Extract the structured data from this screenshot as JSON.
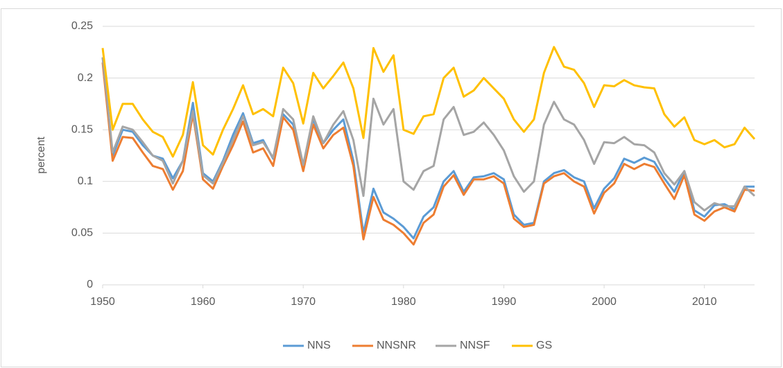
{
  "chart_data": {
    "type": "line",
    "y_label": "percent",
    "x": [
      1950,
      1951,
      1952,
      1953,
      1954,
      1955,
      1956,
      1957,
      1958,
      1959,
      1960,
      1961,
      1962,
      1963,
      1964,
      1965,
      1966,
      1967,
      1968,
      1969,
      1970,
      1971,
      1972,
      1973,
      1974,
      1975,
      1976,
      1977,
      1978,
      1979,
      1980,
      1981,
      1982,
      1983,
      1984,
      1985,
      1986,
      1987,
      1988,
      1989,
      1990,
      1991,
      1992,
      1993,
      1994,
      1995,
      1996,
      1997,
      1998,
      1999,
      2000,
      2001,
      2002,
      2003,
      2004,
      2005,
      2006,
      2007,
      2008,
      2009,
      2010,
      2011,
      2012,
      2013,
      2014,
      2015
    ],
    "xlim": [
      1950,
      2015
    ],
    "xticks": [
      1950,
      1960,
      1970,
      1980,
      1990,
      2000,
      2010
    ],
    "ylim": [
      0,
      0.25
    ],
    "yticks": [
      0,
      0.05,
      0.1,
      0.15,
      0.2,
      0.25
    ],
    "grid": true,
    "legend": "bottom",
    "series": [
      {
        "name": "NNS",
        "color": "#5b9bd5",
        "values": [
          0.22,
          0.125,
          0.15,
          0.148,
          0.135,
          0.125,
          0.122,
          0.103,
          0.12,
          0.176,
          0.108,
          0.1,
          0.12,
          0.145,
          0.166,
          0.137,
          0.14,
          0.122,
          0.165,
          0.155,
          0.115,
          0.16,
          0.137,
          0.15,
          0.16,
          0.12,
          0.05,
          0.093,
          0.07,
          0.064,
          0.056,
          0.045,
          0.066,
          0.075,
          0.1,
          0.11,
          0.09,
          0.104,
          0.105,
          0.108,
          0.102,
          0.068,
          0.058,
          0.06,
          0.1,
          0.108,
          0.111,
          0.104,
          0.1,
          0.074,
          0.093,
          0.103,
          0.122,
          0.118,
          0.123,
          0.119,
          0.103,
          0.09,
          0.11,
          0.072,
          0.066,
          0.077,
          0.078,
          0.073,
          0.095,
          0.095
        ]
      },
      {
        "name": "NNSNR",
        "color": "#ed7d31",
        "values": [
          0.215,
          0.12,
          0.143,
          0.142,
          0.128,
          0.115,
          0.112,
          0.092,
          0.11,
          0.165,
          0.102,
          0.093,
          0.115,
          0.135,
          0.158,
          0.128,
          0.132,
          0.115,
          0.162,
          0.15,
          0.11,
          0.155,
          0.132,
          0.145,
          0.152,
          0.115,
          0.044,
          0.085,
          0.063,
          0.058,
          0.05,
          0.039,
          0.06,
          0.068,
          0.095,
          0.106,
          0.087,
          0.102,
          0.102,
          0.105,
          0.098,
          0.064,
          0.056,
          0.058,
          0.098,
          0.105,
          0.108,
          0.1,
          0.095,
          0.069,
          0.089,
          0.098,
          0.117,
          0.112,
          0.117,
          0.114,
          0.098,
          0.083,
          0.106,
          0.068,
          0.062,
          0.071,
          0.075,
          0.071,
          0.092,
          0.091
        ]
      },
      {
        "name": "NNSF",
        "color": "#a5a5a5",
        "values": [
          0.22,
          0.128,
          0.153,
          0.15,
          0.138,
          0.125,
          0.12,
          0.098,
          0.12,
          0.168,
          0.106,
          0.098,
          0.118,
          0.14,
          0.163,
          0.135,
          0.138,
          0.123,
          0.17,
          0.16,
          0.116,
          0.163,
          0.137,
          0.155,
          0.168,
          0.14,
          0.086,
          0.18,
          0.155,
          0.17,
          0.1,
          0.092,
          0.11,
          0.115,
          0.16,
          0.172,
          0.145,
          0.148,
          0.157,
          0.145,
          0.13,
          0.105,
          0.09,
          0.1,
          0.155,
          0.177,
          0.16,
          0.155,
          0.14,
          0.117,
          0.138,
          0.137,
          0.143,
          0.136,
          0.135,
          0.128,
          0.108,
          0.097,
          0.11,
          0.08,
          0.072,
          0.079,
          0.076,
          0.076,
          0.095,
          0.086
        ]
      },
      {
        "name": "GS",
        "color": "#ffc000",
        "values": [
          0.229,
          0.15,
          0.175,
          0.175,
          0.16,
          0.148,
          0.143,
          0.124,
          0.145,
          0.196,
          0.135,
          0.126,
          0.15,
          0.17,
          0.193,
          0.165,
          0.17,
          0.163,
          0.21,
          0.195,
          0.156,
          0.205,
          0.19,
          0.202,
          0.215,
          0.19,
          0.142,
          0.229,
          0.206,
          0.222,
          0.15,
          0.146,
          0.163,
          0.165,
          0.2,
          0.21,
          0.182,
          0.188,
          0.2,
          0.19,
          0.18,
          0.16,
          0.148,
          0.16,
          0.205,
          0.23,
          0.211,
          0.208,
          0.195,
          0.172,
          0.193,
          0.192,
          0.198,
          0.193,
          0.191,
          0.19,
          0.165,
          0.153,
          0.162,
          0.14,
          0.136,
          0.14,
          0.133,
          0.136,
          0.152,
          0.141
        ]
      }
    ]
  }
}
